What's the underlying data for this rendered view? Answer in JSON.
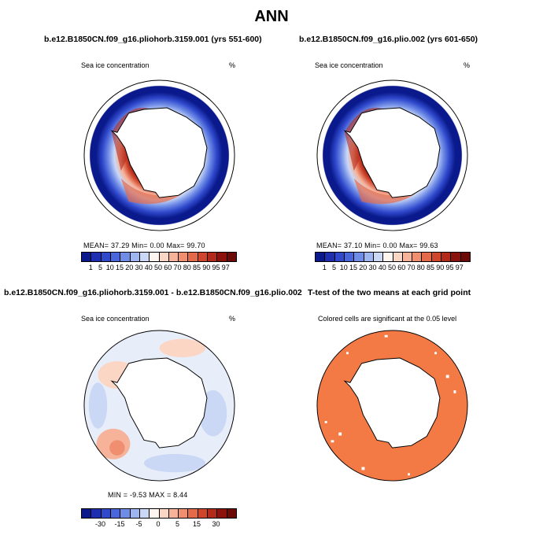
{
  "title": "ANN",
  "colors": {
    "seq": [
      "#0a1a8c",
      "#1d2fb0",
      "#2f48cc",
      "#4a66dd",
      "#6f8ce6",
      "#9fb5ef",
      "#cad8f6",
      "#fff5ee",
      "#fbd6c5",
      "#f6b39a",
      "#ef8f70",
      "#e46a4a",
      "#d0462c",
      "#b42a1a",
      "#8c130d"
    ],
    "div": [
      "#0a1a8c",
      "#1d2fb0",
      "#2f48cc",
      "#4a66dd",
      "#6f8ce6",
      "#9fb5ef",
      "#cad8f6",
      "#fff5ee",
      "#fbd6c5",
      "#f6b39a",
      "#ef8f70",
      "#e46a4a",
      "#d0462c",
      "#b42a1a",
      "#8c130d"
    ],
    "sig": "#f37a45"
  },
  "chart_data": [
    {
      "type": "heatmap",
      "title": "b.e12.B1850CN.f09_g16.pliohorb.3159.001 (yrs 551-600)",
      "subtitle_left": "Sea ice concentration",
      "subtitle_right": "%",
      "stats_text": "MEAN=   37.29   Min=    0.00   Max=   99.70",
      "mean": 37.29,
      "min": 0.0,
      "max": 99.7,
      "colorbar_levels": [
        "1",
        "5",
        "10",
        "15",
        "20",
        "30",
        "40",
        "50",
        "60",
        "70",
        "80",
        "85",
        "90",
        "95",
        "97"
      ]
    },
    {
      "type": "heatmap",
      "title": "b.e12.B1850CN.f09_g16.plio.002 (yrs 601-650)",
      "subtitle_left": "Sea ice concentration",
      "subtitle_right": "%",
      "stats_text": "MEAN=   37.10   Min=    0.00   Max=   99.63",
      "mean": 37.1,
      "min": 0.0,
      "max": 99.63,
      "colorbar_levels": [
        "1",
        "5",
        "10",
        "15",
        "20",
        "30",
        "40",
        "50",
        "60",
        "70",
        "80",
        "85",
        "90",
        "95",
        "97"
      ]
    },
    {
      "type": "heatmap",
      "title": "b.e12.B1850CN.f09_g16.pliohorb.3159.001 - b.e12.B1850CN.f09_g16.plio.002",
      "subtitle_left": "Sea ice concentration",
      "subtitle_right": "%",
      "stats_text": "MIN =   -9.53  MAX =    8.44",
      "min": -9.53,
      "max": 8.44,
      "colorbar_levels": [
        "-30",
        "-15",
        "-5",
        "0",
        "5",
        "15",
        "30"
      ]
    },
    {
      "type": "heatmap",
      "title": "T-test of the two means at each grid point",
      "subtitle": "Colored cells are significant at the 0.05 level"
    }
  ]
}
